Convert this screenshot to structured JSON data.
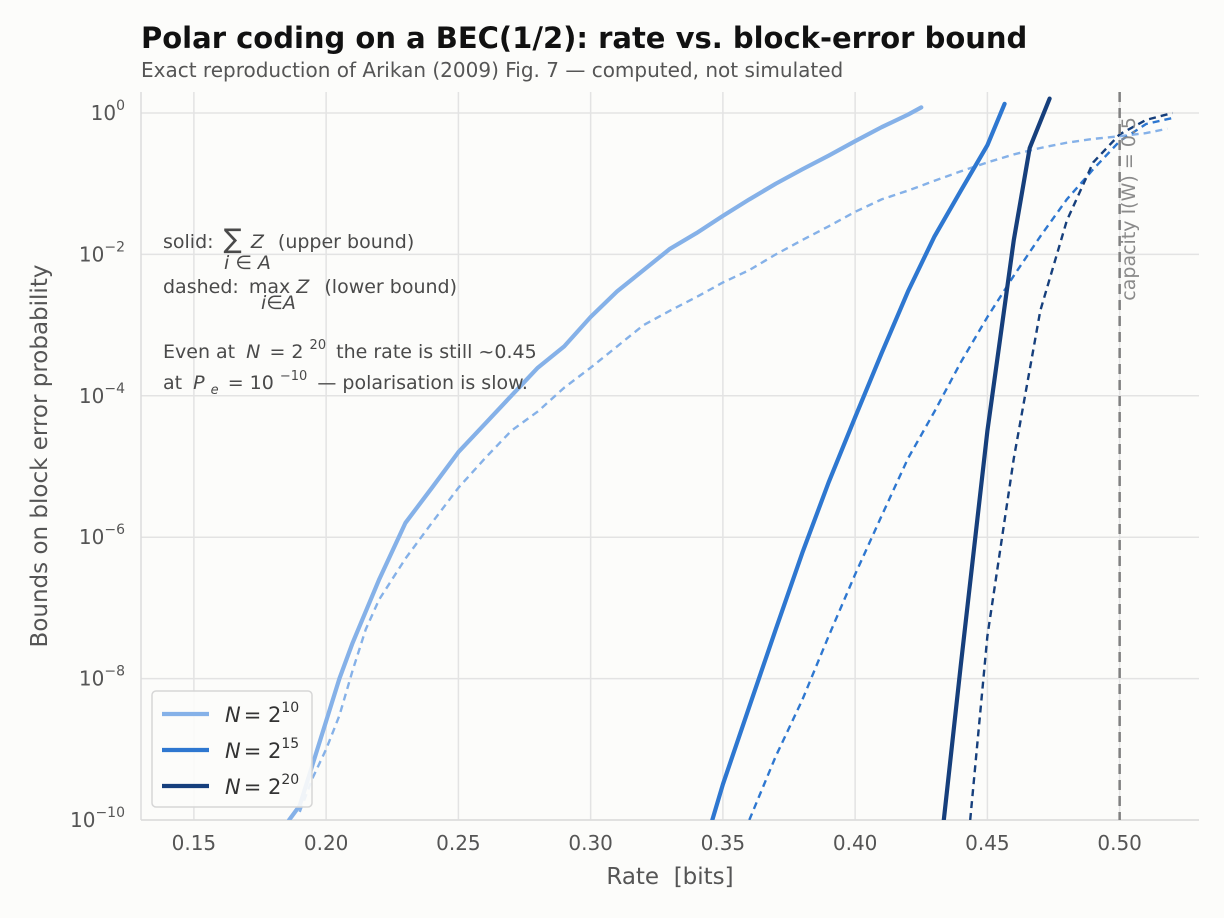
{
  "header": {
    "title": "Polar coding on a BEC(1/2): rate vs. block-error bound",
    "subtitle": "Exact reproduction of Arikan (2009) Fig. 7 — computed, not simulated"
  },
  "annotations": {
    "solid_prefix": "solid:",
    "solid_sym": "∑",
    "solid_sub": "i ∈ A",
    "solid_var": "Z",
    "solid_suffix": "(upper bound)",
    "dashed_prefix": "dashed:",
    "dashed_sym": "max",
    "dashed_sub": "i∈A",
    "dashed_var": "Z",
    "dashed_suffix": "(lower bound)",
    "line3_a": "Even at",
    "line3_N": "N",
    "line3_eq": "= 2",
    "line3_exp": "20",
    "line3_b": "the rate is still ~0.45",
    "line4_a": "at",
    "line4_P": "P",
    "line4_sub": "e",
    "line4_eq": "= 10",
    "line4_exp": "−10",
    "line4_b": "— polarisation is slow.",
    "capacity": "capacity I(W) = 0.5"
  },
  "chart_data": {
    "type": "line",
    "title": "Polar coding on a BEC(1/2): rate vs. block-error bound",
    "subtitle": "Exact reproduction of Arikan (2009) Fig. 7 — computed, not simulated",
    "xlabel": "Rate  [bits]",
    "ylabel": "Bounds on block error probability",
    "xlim": [
      0.13,
      0.53
    ],
    "ylim_log10": [
      -10,
      0.3
    ],
    "y_scale": "log",
    "grid": true,
    "legend_position": "lower-left",
    "x_ticks": [
      {
        "value": 0.15,
        "label": "0.15"
      },
      {
        "value": 0.2,
        "label": "0.20"
      },
      {
        "value": 0.25,
        "label": "0.25"
      },
      {
        "value": 0.3,
        "label": "0.30"
      },
      {
        "value": 0.35,
        "label": "0.35"
      },
      {
        "value": 0.4,
        "label": "0.40"
      },
      {
        "value": 0.45,
        "label": "0.45"
      },
      {
        "value": 0.5,
        "label": "0.50"
      }
    ],
    "y_ticks": [
      {
        "value": 1,
        "base": "10",
        "exp": "0"
      },
      {
        "value": 0.01,
        "base": "10",
        "exp": "−2"
      },
      {
        "value": 0.0001,
        "base": "10",
        "exp": "−4"
      },
      {
        "value": 1e-06,
        "base": "10",
        "exp": "−6"
      },
      {
        "value": 1e-08,
        "base": "10",
        "exp": "−8"
      },
      {
        "value": 1e-10,
        "base": "10",
        "exp": "−10"
      }
    ],
    "capacity_line": {
      "x": 0.5,
      "color": "#808080"
    },
    "series": [
      {
        "name": "N = 2^10",
        "legend_lhs": "N",
        "legend_rhs": "= 2",
        "legend_exp": "10",
        "color": "#85b1e8",
        "width": 4.2,
        "upper": [
          [
            0.186,
            1e-10
          ],
          [
            0.19,
            1.6e-10
          ],
          [
            0.195,
            6.3e-10
          ],
          [
            0.2,
            2.5e-09
          ],
          [
            0.205,
            1e-08
          ],
          [
            0.21,
            3.2e-08
          ],
          [
            0.22,
            2.5e-07
          ],
          [
            0.23,
            1.6e-06
          ],
          [
            0.24,
            5e-06
          ],
          [
            0.25,
            1.6e-05
          ],
          [
            0.26,
            4e-05
          ],
          [
            0.27,
            0.0001
          ],
          [
            0.28,
            0.00025
          ],
          [
            0.29,
            0.0005
          ],
          [
            0.3,
            0.0013
          ],
          [
            0.31,
            0.003
          ],
          [
            0.32,
            0.006
          ],
          [
            0.33,
            0.012
          ],
          [
            0.34,
            0.02
          ],
          [
            0.35,
            0.035
          ],
          [
            0.36,
            0.06
          ],
          [
            0.37,
            0.1
          ],
          [
            0.38,
            0.16
          ],
          [
            0.39,
            0.25
          ],
          [
            0.4,
            0.4
          ],
          [
            0.41,
            0.63
          ],
          [
            0.42,
            0.95
          ],
          [
            0.425,
            1.2
          ]
        ],
        "lower": [
          [
            0.19,
            1.3e-10
          ],
          [
            0.195,
            4e-10
          ],
          [
            0.2,
            1e-09
          ],
          [
            0.205,
            3e-09
          ],
          [
            0.21,
            1.3e-08
          ],
          [
            0.215,
            5e-08
          ],
          [
            0.22,
            1.3e-07
          ],
          [
            0.23,
            5e-07
          ],
          [
            0.24,
            1.6e-06
          ],
          [
            0.25,
            5e-06
          ],
          [
            0.26,
            1.3e-05
          ],
          [
            0.27,
            3.2e-05
          ],
          [
            0.28,
            6e-05
          ],
          [
            0.29,
            0.00013
          ],
          [
            0.3,
            0.00025
          ],
          [
            0.31,
            0.0005
          ],
          [
            0.32,
            0.001
          ],
          [
            0.33,
            0.0016
          ],
          [
            0.34,
            0.0025
          ],
          [
            0.35,
            0.004
          ],
          [
            0.36,
            0.006
          ],
          [
            0.37,
            0.01
          ],
          [
            0.38,
            0.016
          ],
          [
            0.39,
            0.025
          ],
          [
            0.4,
            0.04
          ],
          [
            0.41,
            0.06
          ],
          [
            0.42,
            0.08
          ],
          [
            0.43,
            0.11
          ],
          [
            0.44,
            0.15
          ],
          [
            0.45,
            0.2
          ],
          [
            0.46,
            0.26
          ],
          [
            0.47,
            0.32
          ],
          [
            0.48,
            0.38
          ],
          [
            0.49,
            0.43
          ],
          [
            0.5,
            0.47
          ],
          [
            0.51,
            0.52
          ],
          [
            0.518,
            0.6
          ]
        ]
      },
      {
        "name": "N = 2^15",
        "legend_lhs": "N",
        "legend_rhs": "= 2",
        "legend_exp": "15",
        "color": "#2e77d0",
        "width": 4.2,
        "upper": [
          [
            0.346,
            1e-10
          ],
          [
            0.35,
            3.2e-10
          ],
          [
            0.36,
            4e-09
          ],
          [
            0.37,
            5e-08
          ],
          [
            0.38,
            6e-07
          ],
          [
            0.39,
            6e-06
          ],
          [
            0.4,
            5e-05
          ],
          [
            0.41,
            0.0004
          ],
          [
            0.42,
            0.003
          ],
          [
            0.43,
            0.018
          ],
          [
            0.44,
            0.08
          ],
          [
            0.45,
            0.35
          ],
          [
            0.4565,
            1.35
          ]
        ],
        "lower": [
          [
            0.36,
            1e-10
          ],
          [
            0.37,
            8e-10
          ],
          [
            0.38,
            5e-09
          ],
          [
            0.39,
            4e-08
          ],
          [
            0.4,
            3e-07
          ],
          [
            0.41,
            2e-06
          ],
          [
            0.42,
            1.3e-05
          ],
          [
            0.43,
            6e-05
          ],
          [
            0.44,
            0.0003
          ],
          [
            0.45,
            0.0013
          ],
          [
            0.46,
            0.005
          ],
          [
            0.47,
            0.018
          ],
          [
            0.48,
            0.06
          ],
          [
            0.49,
            0.16
          ],
          [
            0.5,
            0.4
          ],
          [
            0.51,
            0.7
          ],
          [
            0.52,
            0.85
          ]
        ]
      },
      {
        "name": "N = 2^20",
        "legend_lhs": "N",
        "legend_rhs": "= 2",
        "legend_exp": "20",
        "color": "#163f7c",
        "width": 4.2,
        "upper": [
          [
            0.4335,
            1e-10
          ],
          [
            0.44,
            1.6e-08
          ],
          [
            0.45,
            3.2e-05
          ],
          [
            0.46,
            0.016
          ],
          [
            0.466,
            0.32
          ],
          [
            0.4735,
            1.6
          ]
        ],
        "lower": [
          [
            0.4435,
            1e-10
          ],
          [
            0.45,
            4e-08
          ],
          [
            0.46,
            1.3e-05
          ],
          [
            0.47,
            0.0016
          ],
          [
            0.48,
            0.03
          ],
          [
            0.49,
            0.2
          ],
          [
            0.5,
            0.5
          ],
          [
            0.51,
            0.8
          ],
          [
            0.52,
            1.0
          ]
        ]
      }
    ]
  }
}
